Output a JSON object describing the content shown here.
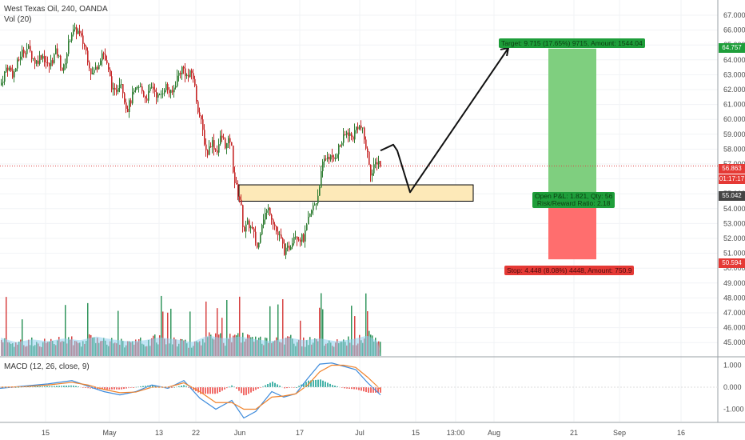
{
  "header": {
    "symbol_title": "West Texas Oil, 240, OANDA",
    "volume_label": "Vol (20)",
    "macd_label": "MACD (12, 26, close, 9)"
  },
  "colors": {
    "up": "#2e7d32",
    "down": "#c62828",
    "vol_up": "#1b8a4a",
    "vol_down": "#d32f2f",
    "vol_ma": "#8fd0ef",
    "macd": "#3d8bdc",
    "signal": "#f0832c",
    "target_zone": "#7fcf7f",
    "stop_zone": "#ff6e6e",
    "support_zone": "#fde9b8",
    "price_line": "#d44"
  },
  "price_axis": {
    "ticks": [
      "67.000",
      "66.000",
      "65.000",
      "64.000",
      "63.000",
      "62.000",
      "61.000",
      "60.000",
      "59.000",
      "58.000",
      "57.000",
      "56.000",
      "55.000",
      "54.000",
      "53.000",
      "52.000",
      "51.000",
      "50.000",
      "49.000",
      "48.000",
      "47.000",
      "46.000",
      "45.000"
    ],
    "tags": [
      {
        "text": "64.757",
        "price": 64.757,
        "color": "#1e9e3a"
      },
      {
        "text": "56.863",
        "price": 56.863,
        "color": "#e53935"
      },
      {
        "text": "01:17:17",
        "price": 56.05,
        "color": "#e53935"
      },
      {
        "text": "55.042",
        "price": 55.042,
        "color": "#444444"
      },
      {
        "text": "50.594",
        "price": 50.594,
        "color": "#e53935"
      }
    ]
  },
  "macd_axis": {
    "ticks": [
      "1.000",
      "0.000",
      "-1.000"
    ]
  },
  "time_axis": {
    "ticks": [
      "15",
      "May",
      "13",
      "22",
      "Jun",
      "17",
      "Jul",
      "15",
      "13:00",
      "Aug",
      "21",
      "Sep",
      "16"
    ]
  },
  "position": {
    "target_label": "Target: 9.715 (17.65%) 9715, Amount: 1544.04",
    "stop_label": "Stop: 4.448 (8.08%) 4448, Amount: 750.9",
    "pnl_line1": "Open P&L: 1.821, Qty: 56",
    "pnl_line2": "Risk/Reward Ratio: 2.18",
    "entry": 55.042,
    "target": 64.757,
    "stop": 50.594
  },
  "chart_data": {
    "type": "candlestick",
    "symbol": "West Texas Oil",
    "timeframe": "240",
    "source": "OANDA",
    "current_price": 56.863,
    "support_zone": [
      54.5,
      55.6
    ],
    "price_path": [
      [
        0,
        62.3
      ],
      [
        8,
        63.6
      ],
      [
        16,
        63.0
      ],
      [
        26,
        64.5
      ],
      [
        34,
        64.8
      ],
      [
        44,
        63.8
      ],
      [
        52,
        64.4
      ],
      [
        60,
        63.5
      ],
      [
        70,
        64.6
      ],
      [
        78,
        63.2
      ],
      [
        88,
        65.8
      ],
      [
        96,
        66.0
      ],
      [
        106,
        64.8
      ],
      [
        114,
        63.0
      ],
      [
        120,
        63.5
      ],
      [
        128,
        64.6
      ],
      [
        136,
        63.0
      ],
      [
        142,
        61.6
      ],
      [
        150,
        62.8
      ],
      [
        158,
        60.6
      ],
      [
        166,
        61.7
      ],
      [
        174,
        62.2
      ],
      [
        182,
        61.4
      ],
      [
        190,
        62.2
      ],
      [
        198,
        61.4
      ],
      [
        206,
        62.3
      ],
      [
        214,
        61.6
      ],
      [
        222,
        63.0
      ],
      [
        228,
        63.5
      ],
      [
        234,
        62.8
      ],
      [
        240,
        63.2
      ],
      [
        246,
        61.0
      ],
      [
        252,
        59.5
      ],
      [
        258,
        57.6
      ],
      [
        264,
        58.6
      ],
      [
        270,
        57.8
      ],
      [
        276,
        58.9
      ],
      [
        282,
        58.2
      ],
      [
        288,
        58.7
      ],
      [
        292,
        56.0
      ],
      [
        296,
        55.2
      ],
      [
        300,
        54.5
      ],
      [
        304,
        52.5
      ],
      [
        310,
        53.0
      ],
      [
        316,
        52.4
      ],
      [
        322,
        51.2
      ],
      [
        326,
        53.0
      ],
      [
        330,
        53.6
      ],
      [
        336,
        54.0
      ],
      [
        342,
        53.0
      ],
      [
        346,
        52.3
      ],
      [
        350,
        52.0
      ],
      [
        356,
        51.0
      ],
      [
        362,
        51.5
      ],
      [
        368,
        52.4
      ],
      [
        374,
        52.0
      ],
      [
        380,
        52.0
      ],
      [
        384,
        53.0
      ],
      [
        390,
        54.0
      ],
      [
        396,
        54.6
      ],
      [
        400,
        56.0
      ],
      [
        404,
        57.2
      ],
      [
        410,
        57.6
      ],
      [
        416,
        57.2
      ],
      [
        422,
        58.0
      ],
      [
        428,
        58.6
      ],
      [
        434,
        59.2
      ],
      [
        440,
        58.7
      ],
      [
        446,
        59.6
      ],
      [
        452,
        59.4
      ],
      [
        456,
        58.4
      ],
      [
        460,
        57.4
      ],
      [
        464,
        56.2
      ],
      [
        468,
        56.9
      ],
      [
        472,
        57.3
      ],
      [
        476,
        56.86
      ]
    ],
    "volume_path": [
      [
        0,
        0.8
      ],
      [
        20,
        0.55
      ],
      [
        40,
        0.7
      ],
      [
        60,
        0.6
      ],
      [
        80,
        0.75
      ],
      [
        100,
        0.65
      ],
      [
        120,
        0.85
      ],
      [
        140,
        0.7
      ],
      [
        160,
        0.6
      ],
      [
        180,
        0.65
      ],
      [
        200,
        0.8
      ],
      [
        220,
        0.7
      ],
      [
        240,
        0.55
      ],
      [
        260,
        0.9
      ],
      [
        280,
        0.75
      ],
      [
        300,
        0.85
      ],
      [
        320,
        0.7
      ],
      [
        340,
        0.6
      ],
      [
        360,
        0.8
      ],
      [
        380,
        0.65
      ],
      [
        400,
        0.75
      ],
      [
        420,
        0.6
      ],
      [
        440,
        0.7
      ],
      [
        460,
        0.9
      ],
      [
        476,
        0.5
      ]
    ],
    "macd_path": [
      [
        0,
        -0.05
      ],
      [
        30,
        0.05
      ],
      [
        60,
        0.15
      ],
      [
        90,
        0.3
      ],
      [
        110,
        0.05
      ],
      [
        130,
        -0.2
      ],
      [
        150,
        -0.35
      ],
      [
        170,
        -0.2
      ],
      [
        190,
        0.1
      ],
      [
        210,
        -0.05
      ],
      [
        230,
        0.3
      ],
      [
        250,
        -0.5
      ],
      [
        270,
        -1.0
      ],
      [
        290,
        -0.6
      ],
      [
        305,
        -1.4
      ],
      [
        320,
        -1.1
      ],
      [
        340,
        -0.2
      ],
      [
        355,
        -0.45
      ],
      [
        370,
        -0.3
      ],
      [
        385,
        0.4
      ],
      [
        400,
        1.05
      ],
      [
        415,
        1.1
      ],
      [
        430,
        0.95
      ],
      [
        445,
        0.8
      ],
      [
        460,
        0.2
      ],
      [
        476,
        -0.35
      ]
    ],
    "signal_path": [
      [
        0,
        0.0
      ],
      [
        30,
        0.02
      ],
      [
        60,
        0.1
      ],
      [
        90,
        0.22
      ],
      [
        110,
        0.1
      ],
      [
        130,
        -0.1
      ],
      [
        150,
        -0.25
      ],
      [
        170,
        -0.22
      ],
      [
        190,
        0.0
      ],
      [
        210,
        0.0
      ],
      [
        230,
        0.2
      ],
      [
        250,
        -0.2
      ],
      [
        270,
        -0.7
      ],
      [
        290,
        -0.7
      ],
      [
        305,
        -1.0
      ],
      [
        320,
        -1.0
      ],
      [
        340,
        -0.45
      ],
      [
        355,
        -0.4
      ],
      [
        370,
        -0.3
      ],
      [
        385,
        0.1
      ],
      [
        400,
        0.7
      ],
      [
        415,
        1.0
      ],
      [
        430,
        1.0
      ],
      [
        445,
        0.9
      ],
      [
        460,
        0.45
      ],
      [
        476,
        -0.1
      ]
    ],
    "projection": [
      [
        476,
        57.9
      ],
      [
        492,
        58.3
      ],
      [
        497,
        57.9
      ],
      [
        513,
        55.1
      ],
      [
        636,
        64.8
      ]
    ],
    "ylim": [
      44.5,
      67.5
    ],
    "macd_ylim": [
      -1.6,
      1.3
    ]
  }
}
